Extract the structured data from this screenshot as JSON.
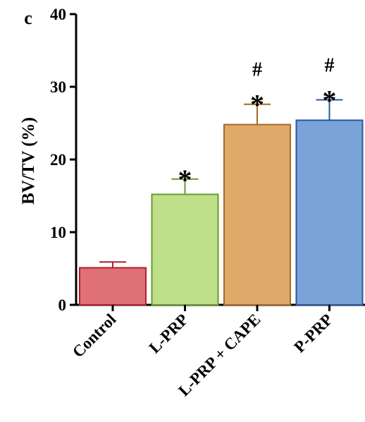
{
  "chart_data": {
    "type": "bar",
    "panel_label": "c",
    "ylabel": "BV/TV (%)",
    "xlabel": "",
    "ylim": [
      0,
      40
    ],
    "y_ticks": [
      "0",
      "10",
      "20",
      "30",
      "40"
    ],
    "categories": [
      "Control",
      "L-PRP",
      "L-PRP + CAPE",
      "P-PRP"
    ],
    "values": [
      5.1,
      15.2,
      24.8,
      25.4
    ],
    "errors": [
      0.8,
      2.1,
      2.8,
      2.8
    ],
    "annotations": [
      [],
      [
        "*"
      ],
      [
        "*",
        "#"
      ],
      [
        "*",
        "#"
      ]
    ],
    "fill_colors": [
      "#e07078",
      "#bfe08a",
      "#ddaa6a",
      "#7aa3d8"
    ],
    "stroke_colors": [
      "#b0202a",
      "#6a9a2a",
      "#a86a20",
      "#2a58a0"
    ]
  }
}
